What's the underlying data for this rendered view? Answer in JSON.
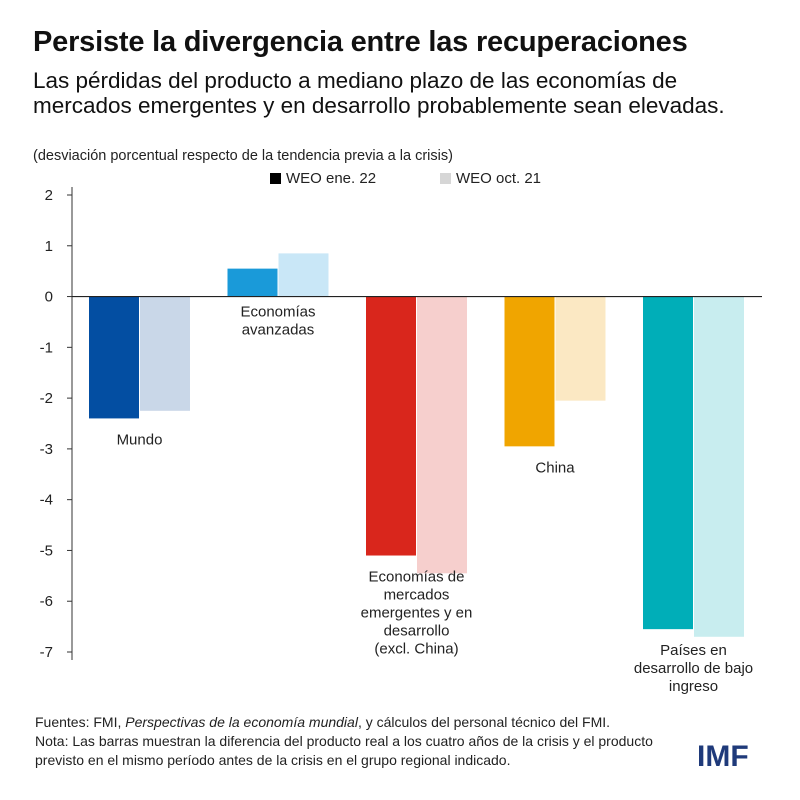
{
  "title": "Persiste la divergencia entre las recuperaciones",
  "subtitle": "Las pérdidas del producto a mediano plazo de las economías de mercados emergentes y en desarrollo probablemente sean elevadas.",
  "units": "(desviación porcentual respecto de la tendencia previa a la crisis)",
  "footer": {
    "sources_prefix": "Fuentes: FMI, ",
    "sources_italic": "Perspectivas de la economía mundial",
    "sources_suffix": ", y cálculos del personal técnico del FMI.",
    "note": "Nota: Las barras muestran la diferencia del producto real a los cuatro años de la crisis y el producto previsto en el mismo período antes de la crisis en el grupo regional indicado."
  },
  "logo": "IMF",
  "chart_data": {
    "type": "bar",
    "ylim": [
      -7,
      2
    ],
    "yticks": [
      2,
      1,
      0,
      -1,
      -2,
      -3,
      -4,
      -5,
      -6,
      -7
    ],
    "series": [
      {
        "name": "WEO ene. 22",
        "legend_color": "#000000",
        "values": [
          -2.4,
          0.55,
          -5.1,
          -2.95,
          -6.55
        ]
      },
      {
        "name": "WEO oct. 21",
        "legend_color": "#d6d6d6",
        "values": [
          -2.25,
          0.85,
          -5.45,
          -2.05,
          -6.7
        ]
      }
    ],
    "categories": [
      {
        "label_lines": [
          "Mundo"
        ],
        "colors": [
          "#034ea2",
          "#c9d7e8"
        ]
      },
      {
        "label_lines": [
          "Economías",
          "avanzadas"
        ],
        "colors": [
          "#1a9ad9",
          "#c9e7f7"
        ]
      },
      {
        "label_lines": [
          "Economías de",
          "mercados",
          "emergentes y en",
          "desarrollo",
          "(excl. China)"
        ],
        "colors": [
          "#d9261c",
          "#f6cfcd"
        ]
      },
      {
        "label_lines": [
          "China"
        ],
        "colors": [
          "#f0a500",
          "#fbe8c3"
        ]
      },
      {
        "label_lines": [
          "Países en",
          "desarrollo de bajo",
          "ingreso"
        ],
        "colors": [
          "#00aeb8",
          "#c8edef"
        ]
      }
    ]
  }
}
